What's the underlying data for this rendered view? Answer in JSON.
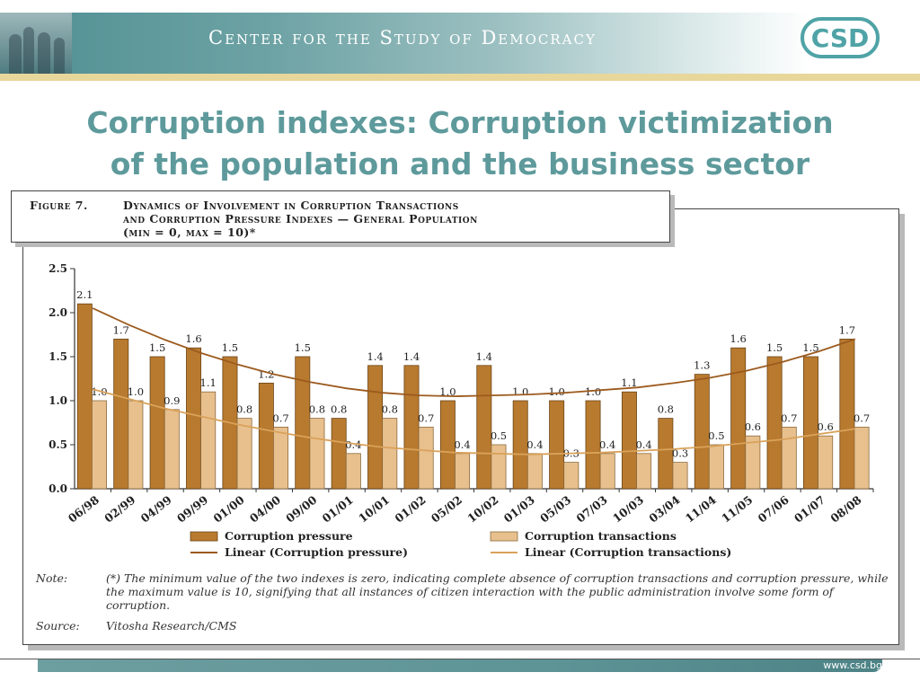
{
  "header": {
    "org_name": "Center for the Study of Democracy",
    "logo_text": "CSD",
    "accent_color": "#5e9a9c",
    "gold_color": "#e8d79a"
  },
  "slide": {
    "title_line1": "Corruption indexes: Corruption victimization",
    "title_line2": "of the population and the business sector"
  },
  "figure": {
    "label": "Figure 7.",
    "caption_line1": "Dynamics of Involvement in Corruption Transactions",
    "caption_line2": "and Corruption Pressure Indexes — General Population",
    "caption_line3": "(min = 0,  max = 10)*",
    "note_key": "Note:",
    "note_text": "(*) The minimum value of the two indexes is zero, indicating complete absence of corruption transactions and corruption pressure, while the maximum value is 10, signifying that all instances of citizen interaction with the public administration involve some form of corruption.",
    "source_key": "Source:",
    "source_text": "Vitosha Research/CMS"
  },
  "chart_data": {
    "type": "bar",
    "categories": [
      "06/98",
      "02/99",
      "04/99",
      "09/99",
      "01/00",
      "04/00",
      "09/00",
      "01/01",
      "10/01",
      "01/02",
      "05/02",
      "10/02",
      "01/03",
      "05/03",
      "07/03",
      "10/03",
      "03/04",
      "11/04",
      "11/05",
      "07/06",
      "01/07",
      "08/08"
    ],
    "series": [
      {
        "name": "Corruption pressure",
        "color": "#b87a2e",
        "values": [
          2.1,
          1.7,
          1.5,
          1.6,
          1.5,
          1.2,
          1.5,
          0.8,
          1.4,
          1.4,
          1.0,
          1.4,
          1.0,
          1.0,
          1.0,
          1.1,
          0.8,
          1.3,
          1.6,
          1.5,
          1.5,
          1.7
        ]
      },
      {
        "name": "Corruption transactions",
        "color": "#e8c08e",
        "values": [
          1.0,
          1.0,
          0.9,
          1.1,
          0.8,
          0.7,
          0.8,
          0.4,
          0.8,
          0.7,
          0.4,
          0.5,
          0.4,
          0.3,
          0.4,
          0.4,
          0.3,
          0.5,
          0.6,
          0.7,
          0.6,
          0.7
        ]
      }
    ],
    "data_labels_pressure": [
      "2.1",
      "1.7",
      "1.5",
      "1.6",
      "1.5",
      "1.2",
      "1.5",
      "0.8",
      "1.4",
      "1.4",
      "1.0",
      "1.4",
      "1.0",
      "1.0",
      "1.0",
      "1.1",
      "0.8",
      "1.3",
      "1.6",
      "1.5",
      "1.5",
      "1.7"
    ],
    "data_labels_transactions": [
      "1.0",
      "1.0",
      "0.9",
      "1.1",
      "0.8",
      "0.7",
      "0.8",
      "0.4",
      "0.8",
      "0.7",
      "0.4",
      "0.5",
      "0.4",
      "0.3",
      "0.4",
      "0.4",
      "0.3",
      "0.5",
      "0.6",
      "0.7",
      "0.6",
      "0.7"
    ],
    "trend_pressure_points": [
      2.05,
      1.86,
      1.69,
      1.54,
      1.41,
      1.3,
      1.21,
      1.14,
      1.09,
      1.06,
      1.05,
      1.06,
      1.07,
      1.09,
      1.12,
      1.15,
      1.2,
      1.26,
      1.34,
      1.44,
      1.56,
      1.7
    ],
    "trend_transactions_points": [
      1.13,
      1.02,
      0.91,
      0.82,
      0.73,
      0.65,
      0.58,
      0.52,
      0.47,
      0.44,
      0.41,
      0.4,
      0.39,
      0.4,
      0.41,
      0.43,
      0.45,
      0.48,
      0.52,
      0.56,
      0.62,
      0.68
    ],
    "trend_pressure_color": "#9c5a1e",
    "trend_transactions_color": "#d9a25a",
    "ylim": [
      0,
      2.5
    ],
    "yticks": [
      "0.0",
      "0.5",
      "1.0",
      "1.5",
      "2.0",
      "2.5"
    ],
    "ytick_values": [
      0,
      0.5,
      1.0,
      1.5,
      2.0,
      2.5
    ],
    "legend": {
      "placement": "bottom",
      "bar1": "Corruption pressure",
      "bar2": "Corruption transactions",
      "line1": "Linear (Corruption pressure)",
      "line2": "Linear (Corruption transactions)"
    },
    "grid": false
  },
  "footer": {
    "url": "www.csd.bg"
  }
}
